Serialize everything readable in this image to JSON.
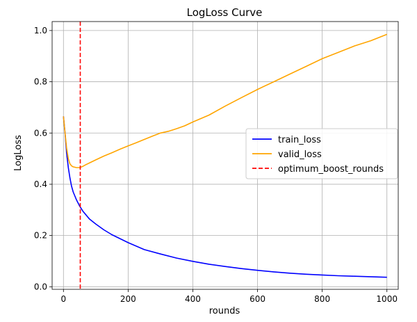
{
  "chart_data": {
    "type": "line",
    "title": "LogLoss Curve",
    "xlabel": "rounds",
    "ylabel": "LogLoss",
    "xlim": [
      -35,
      1035
    ],
    "ylim": [
      -0.01,
      1.035
    ],
    "xticks": [
      0,
      200,
      400,
      600,
      800,
      1000
    ],
    "yticks": [
      0.0,
      0.2,
      0.4,
      0.6,
      0.8,
      1.0
    ],
    "grid": true,
    "legend_position": "center-right",
    "series": [
      {
        "name": "train_loss",
        "color": "#0000ff",
        "style": "solid",
        "x": [
          0,
          5,
          10,
          15,
          20,
          25,
          30,
          40,
          50,
          60,
          70,
          80,
          100,
          125,
          150,
          200,
          250,
          300,
          350,
          400,
          450,
          500,
          550,
          600,
          650,
          700,
          750,
          800,
          850,
          900,
          950,
          1000
        ],
        "y": [
          0.665,
          0.6,
          0.52,
          0.465,
          0.425,
          0.393,
          0.37,
          0.34,
          0.315,
          0.295,
          0.28,
          0.265,
          0.245,
          0.222,
          0.203,
          0.172,
          0.145,
          0.128,
          0.112,
          0.099,
          0.088,
          0.079,
          0.071,
          0.064,
          0.058,
          0.053,
          0.049,
          0.046,
          0.043,
          0.041,
          0.039,
          0.037
        ]
      },
      {
        "name": "valid_loss",
        "color": "#ffa500",
        "style": "solid",
        "x": [
          0,
          5,
          10,
          15,
          20,
          25,
          30,
          40,
          50,
          60,
          70,
          80,
          100,
          125,
          150,
          175,
          200,
          225,
          250,
          275,
          300,
          325,
          350,
          375,
          400,
          450,
          500,
          550,
          600,
          650,
          700,
          750,
          800,
          850,
          900,
          950,
          1000
        ],
        "y": [
          0.665,
          0.6,
          0.54,
          0.5,
          0.48,
          0.472,
          0.468,
          0.465,
          0.465,
          0.47,
          0.477,
          0.483,
          0.495,
          0.51,
          0.523,
          0.537,
          0.55,
          0.562,
          0.575,
          0.588,
          0.6,
          0.607,
          0.617,
          0.628,
          0.643,
          0.67,
          0.705,
          0.738,
          0.77,
          0.8,
          0.83,
          0.86,
          0.89,
          0.915,
          0.94,
          0.96,
          0.985
        ]
      },
      {
        "name": "optimum_boost_rounds",
        "color": "#ff0000",
        "style": "dashed",
        "type": "vline",
        "x_value": 52
      }
    ]
  }
}
